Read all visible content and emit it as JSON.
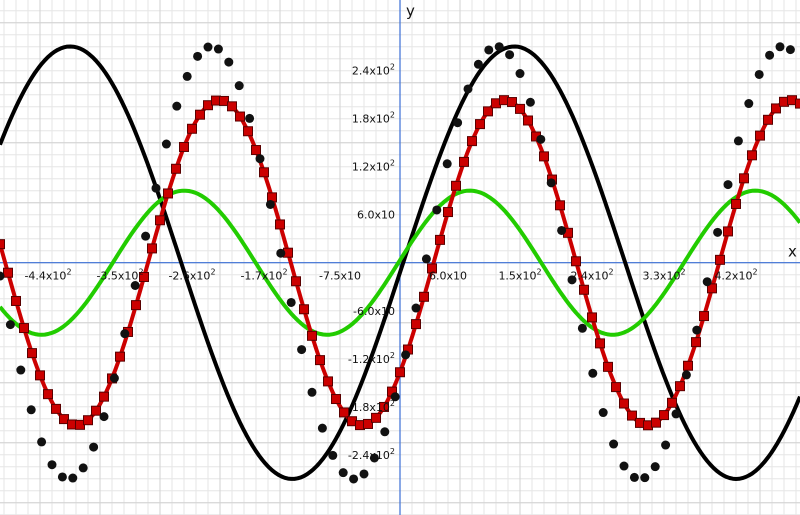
{
  "chart_data": {
    "type": "line",
    "title": "",
    "xlabel": "x",
    "ylabel": "y",
    "xlim": [
      -500,
      500
    ],
    "ylim": [
      -315,
      328
    ],
    "grid": true,
    "x_ticks": [
      {
        "value": -440,
        "label": "-4.4x10",
        "exp": "2"
      },
      {
        "value": -350,
        "label": "-3.5x10",
        "exp": "2"
      },
      {
        "value": -260,
        "label": "-2.6x10",
        "exp": "2"
      },
      {
        "value": -170,
        "label": "-1.7x10",
        "exp": "2"
      },
      {
        "value": -75,
        "label": "-7.5x10",
        "exp": ""
      },
      {
        "value": 60,
        "label": "6.0x10",
        "exp": ""
      },
      {
        "value": 150,
        "label": "1.5x10",
        "exp": "2"
      },
      {
        "value": 240,
        "label": "2.4x10",
        "exp": "2"
      },
      {
        "value": 330,
        "label": "3.3x10",
        "exp": "2"
      },
      {
        "value": 420,
        "label": "4.2x10",
        "exp": "2"
      }
    ],
    "y_ticks": [
      {
        "value": 240,
        "label": "2.4x10",
        "exp": "2"
      },
      {
        "value": 180,
        "label": "1.8x10",
        "exp": "2"
      },
      {
        "value": 120,
        "label": "1.2x10",
        "exp": "2"
      },
      {
        "value": 60,
        "label": "6.0x10",
        "exp": ""
      },
      {
        "value": -60,
        "label": "-6.0x10",
        "exp": ""
      },
      {
        "value": -120,
        "label": "-1.2x10",
        "exp": "2"
      },
      {
        "value": -180,
        "label": "-1.8x10",
        "exp": "2"
      },
      {
        "value": -240,
        "label": "-2.4x10",
        "exp": "2"
      }
    ],
    "series": [
      {
        "function": "y = 270*sin((x - 4) * 2*pi/555)",
        "x_range": [
          -500,
          500
        ],
        "sample_step": 4,
        "color": "#000000",
        "style": "solid-line"
      },
      {
        "function": "y = 90*sin((x + 2) * 2*pi/357)",
        "x_range": [
          -500,
          500
        ],
        "sample_step": 4,
        "color": "#22cc00",
        "style": "solid-line"
      },
      {
        "function": "y = 203*sin((x - 42) * 2*pi/357)",
        "x_range": [
          -500,
          500
        ],
        "sample_step": 4,
        "color": "#cc0000",
        "style": "solid-line"
      },
      {
        "function": "y = 203*sin((x - 42) * 2*pi/357)",
        "x_range": [
          -500,
          500
        ],
        "sample_step": 10,
        "color": "#cc0000",
        "style": "square-markers"
      },
      {
        "function": "y = 270*sin((x - 32) * 2*pi/357)",
        "x_range": [
          -500,
          500
        ],
        "sample_step": 13,
        "color": "#111111",
        "style": "dot-markers"
      }
    ]
  }
}
